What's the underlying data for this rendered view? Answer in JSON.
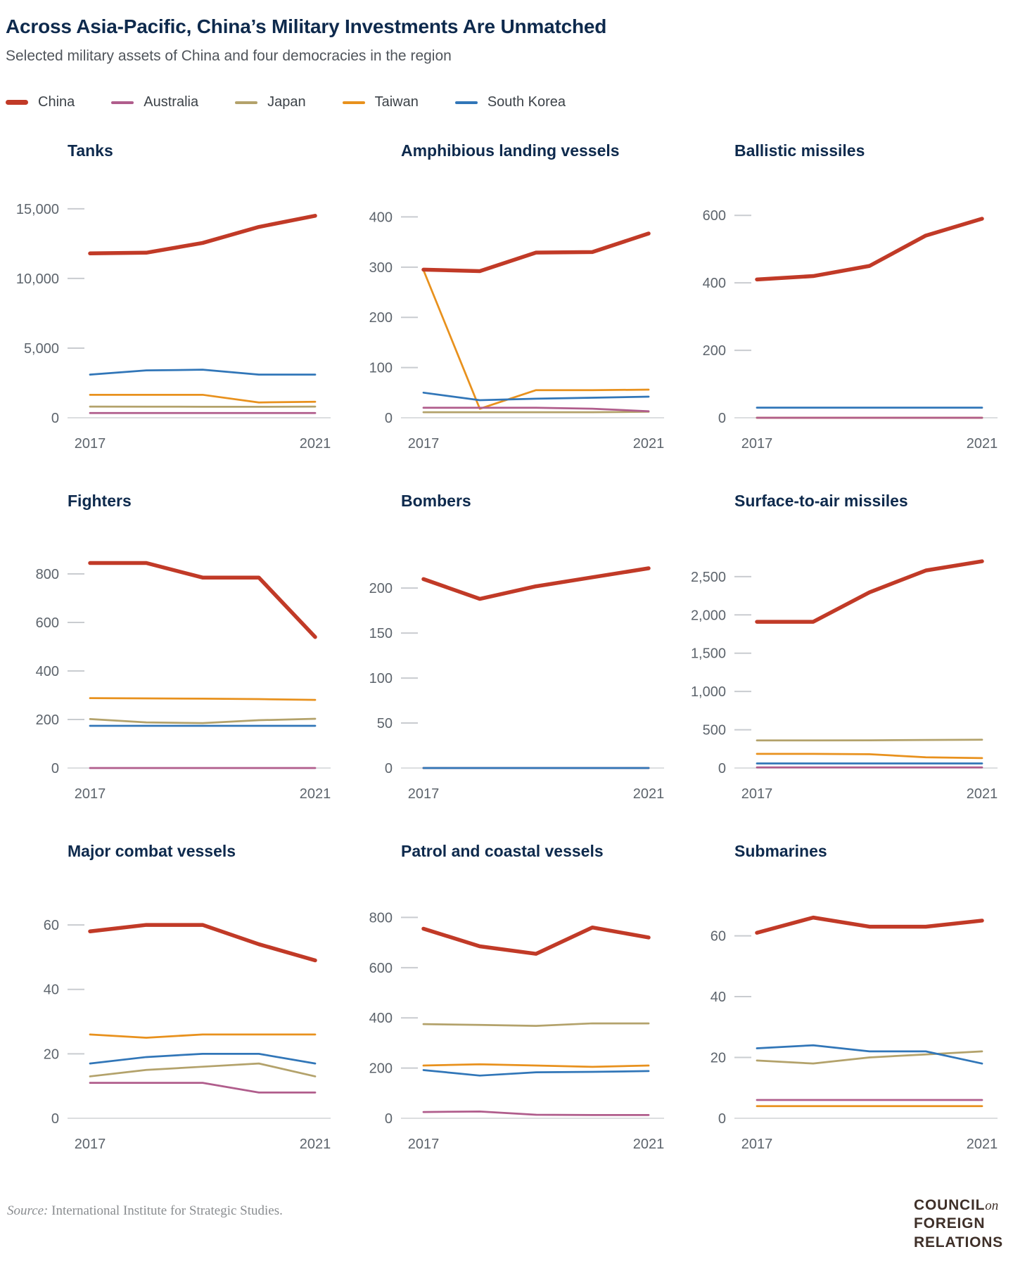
{
  "header": {
    "title": "Across Asia-Pacific, China’s Military Investments Are Unmatched",
    "subtitle": "Selected military assets of China and four democracies in the region"
  },
  "legend": {
    "items": [
      {
        "label": "China",
        "color": "#c13a27",
        "thick": true
      },
      {
        "label": "Australia",
        "color": "#b05d8c",
        "thick": false
      },
      {
        "label": "Japan",
        "color": "#b3a26b",
        "thick": false
      },
      {
        "label": "Taiwan",
        "color": "#e8911d",
        "thick": false
      },
      {
        "label": "South Korea",
        "color": "#3176b8",
        "thick": false
      }
    ]
  },
  "chart_data": [
    {
      "type": "line",
      "title": "Tanks",
      "x": [
        2017,
        2018,
        2019,
        2020,
        2021
      ],
      "xtick_labels": [
        "2017",
        "2021"
      ],
      "ylim": [
        0,
        15500
      ],
      "yticks": [
        {
          "v": 0,
          "label": "0"
        },
        {
          "v": 5000,
          "label": "5,000"
        },
        {
          "v": 10000,
          "label": "10,000"
        },
        {
          "v": 15000,
          "label": "15,000"
        }
      ],
      "series": [
        {
          "name": "Japan",
          "values": [
            800,
            795,
            790,
            790,
            800
          ]
        },
        {
          "name": "Taiwan",
          "values": [
            1650,
            1650,
            1650,
            1100,
            1150
          ]
        },
        {
          "name": "Australia",
          "values": [
            340,
            340,
            340,
            340,
            340
          ]
        },
        {
          "name": "South Korea",
          "values": [
            3100,
            3400,
            3450,
            3100,
            3100
          ]
        },
        {
          "name": "China",
          "values": [
            11800,
            11850,
            12550,
            13700,
            14500
          ]
        }
      ]
    },
    {
      "type": "line",
      "title": "Amphibious landing vessels",
      "x": [
        2017,
        2018,
        2019,
        2020,
        2021
      ],
      "xtick_labels": [
        "2017",
        "2021"
      ],
      "ylim": [
        0,
        430
      ],
      "yticks": [
        {
          "v": 0,
          "label": "0"
        },
        {
          "v": 100,
          "label": "100"
        },
        {
          "v": 200,
          "label": "200"
        },
        {
          "v": 300,
          "label": "300"
        },
        {
          "v": 400,
          "label": "400"
        }
      ],
      "series": [
        {
          "name": "Japan",
          "values": [
            11,
            11,
            11,
            11,
            12
          ]
        },
        {
          "name": "Taiwan",
          "values": [
            294,
            18,
            55,
            55,
            56
          ]
        },
        {
          "name": "Australia",
          "values": [
            20,
            20,
            20,
            18,
            13
          ]
        },
        {
          "name": "South Korea",
          "values": [
            50,
            35,
            38,
            40,
            42
          ]
        },
        {
          "name": "China",
          "values": [
            295,
            292,
            329,
            330,
            367
          ]
        }
      ]
    },
    {
      "type": "line",
      "title": "Ballistic missiles",
      "x": [
        2017,
        2018,
        2019,
        2020,
        2021
      ],
      "xtick_labels": [
        "2017",
        "2021"
      ],
      "ylim": [
        0,
        640
      ],
      "yticks": [
        {
          "v": 0,
          "label": "0"
        },
        {
          "v": 200,
          "label": "200"
        },
        {
          "v": 400,
          "label": "400"
        },
        {
          "v": 600,
          "label": "600"
        }
      ],
      "series": [
        {
          "name": "Japan",
          "values": [
            0,
            0,
            0,
            0,
            0
          ]
        },
        {
          "name": "Taiwan",
          "values": [
            0,
            0,
            0,
            0,
            0
          ]
        },
        {
          "name": "Australia",
          "values": [
            0,
            0,
            0,
            0,
            0
          ]
        },
        {
          "name": "South Korea",
          "values": [
            30,
            30,
            30,
            30,
            30
          ]
        },
        {
          "name": "China",
          "values": [
            410,
            420,
            450,
            540,
            590
          ]
        }
      ]
    },
    {
      "type": "line",
      "title": "Fighters",
      "x": [
        2017,
        2018,
        2019,
        2020,
        2021
      ],
      "xtick_labels": [
        "2017",
        "2021"
      ],
      "ylim": [
        0,
        890
      ],
      "yticks": [
        {
          "v": 0,
          "label": "0"
        },
        {
          "v": 200,
          "label": "200"
        },
        {
          "v": 400,
          "label": "400"
        },
        {
          "v": 600,
          "label": "600"
        },
        {
          "v": 800,
          "label": "800"
        }
      ],
      "series": [
        {
          "name": "Japan",
          "values": [
            202,
            188,
            185,
            197,
            203
          ]
        },
        {
          "name": "Taiwan",
          "values": [
            288,
            287,
            286,
            284,
            281
          ]
        },
        {
          "name": "Australia",
          "values": [
            0,
            0,
            0,
            0,
            0
          ]
        },
        {
          "name": "South Korea",
          "values": [
            174,
            174,
            174,
            174,
            174
          ]
        },
        {
          "name": "China",
          "values": [
            845,
            845,
            785,
            785,
            540
          ]
        }
      ]
    },
    {
      "type": "line",
      "title": "Bombers",
      "x": [
        2017,
        2018,
        2019,
        2020,
        2021
      ],
      "xtick_labels": [
        "2017",
        "2021"
      ],
      "ylim": [
        0,
        240
      ],
      "yticks": [
        {
          "v": 0,
          "label": "0"
        },
        {
          "v": 50,
          "label": "50"
        },
        {
          "v": 100,
          "label": "100"
        },
        {
          "v": 150,
          "label": "150"
        },
        {
          "v": 200,
          "label": "200"
        }
      ],
      "series": [
        {
          "name": "Japan",
          "values": [
            0,
            0,
            0,
            0,
            0
          ]
        },
        {
          "name": "Taiwan",
          "values": [
            0,
            0,
            0,
            0,
            0
          ]
        },
        {
          "name": "Australia",
          "values": [
            0,
            0,
            0,
            0,
            0
          ]
        },
        {
          "name": "South Korea",
          "values": [
            0,
            0,
            0,
            0,
            0
          ]
        },
        {
          "name": "China",
          "values": [
            210,
            188,
            202,
            212,
            222
          ]
        }
      ]
    },
    {
      "type": "line",
      "title": "Surface-to-air missiles",
      "x": [
        2017,
        2018,
        2019,
        2020,
        2021
      ],
      "xtick_labels": [
        "2017",
        "2021"
      ],
      "ylim": [
        0,
        2820
      ],
      "yticks": [
        {
          "v": 0,
          "label": "0"
        },
        {
          "v": 500,
          "label": "500"
        },
        {
          "v": 1000,
          "label": "1,000"
        },
        {
          "v": 1500,
          "label": "1,500"
        },
        {
          "v": 2000,
          "label": "2,000"
        },
        {
          "v": 2500,
          "label": "2,500"
        }
      ],
      "series": [
        {
          "name": "Japan",
          "values": [
            360,
            360,
            362,
            366,
            370
          ]
        },
        {
          "name": "Taiwan",
          "values": [
            185,
            185,
            180,
            140,
            130
          ]
        },
        {
          "name": "Australia",
          "values": [
            8,
            8,
            8,
            8,
            8
          ]
        },
        {
          "name": "South Korea",
          "values": [
            60,
            60,
            60,
            60,
            60
          ]
        },
        {
          "name": "China",
          "values": [
            1910,
            1910,
            2295,
            2580,
            2700
          ]
        }
      ]
    },
    {
      "type": "line",
      "title": "Major combat vessels",
      "x": [
        2017,
        2018,
        2019,
        2020,
        2021
      ],
      "xtick_labels": [
        "2017",
        "2021"
      ],
      "ylim": [
        0,
        67
      ],
      "yticks": [
        {
          "v": 0,
          "label": "0"
        },
        {
          "v": 20,
          "label": "20"
        },
        {
          "v": 40,
          "label": "40"
        },
        {
          "v": 60,
          "label": "60"
        }
      ],
      "series": [
        {
          "name": "Japan",
          "values": [
            13,
            15,
            16,
            17,
            13
          ]
        },
        {
          "name": "Taiwan",
          "values": [
            26,
            25,
            26,
            26,
            26
          ]
        },
        {
          "name": "Australia",
          "values": [
            11,
            11,
            11,
            8,
            8
          ]
        },
        {
          "name": "South Korea",
          "values": [
            17,
            19,
            20,
            20,
            17
          ]
        },
        {
          "name": "China",
          "values": [
            58,
            60,
            60,
            54,
            49
          ]
        }
      ]
    },
    {
      "type": "line",
      "title": "Patrol and coastal vessels",
      "x": [
        2017,
        2018,
        2019,
        2020,
        2021
      ],
      "xtick_labels": [
        "2017",
        "2021"
      ],
      "ylim": [
        0,
        860
      ],
      "yticks": [
        {
          "v": 0,
          "label": "0"
        },
        {
          "v": 200,
          "label": "200"
        },
        {
          "v": 400,
          "label": "400"
        },
        {
          "v": 600,
          "label": "600"
        },
        {
          "v": 800,
          "label": "800"
        }
      ],
      "series": [
        {
          "name": "Japan",
          "values": [
            375,
            372,
            368,
            378,
            378
          ]
        },
        {
          "name": "Taiwan",
          "values": [
            210,
            215,
            210,
            205,
            210
          ]
        },
        {
          "name": "Australia",
          "values": [
            25,
            27,
            14,
            13,
            13
          ]
        },
        {
          "name": "South Korea",
          "values": [
            192,
            170,
            183,
            185,
            188
          ]
        },
        {
          "name": "China",
          "values": [
            755,
            685,
            655,
            760,
            720
          ]
        }
      ]
    },
    {
      "type": "line",
      "title": "Submarines",
      "x": [
        2017,
        2018,
        2019,
        2020,
        2021
      ],
      "xtick_labels": [
        "2017",
        "2021"
      ],
      "ylim": [
        0,
        71
      ],
      "yticks": [
        {
          "v": 0,
          "label": "0"
        },
        {
          "v": 20,
          "label": "20"
        },
        {
          "v": 40,
          "label": "40"
        },
        {
          "v": 60,
          "label": "60"
        }
      ],
      "series": [
        {
          "name": "Japan",
          "values": [
            19,
            18,
            20,
            21,
            22
          ]
        },
        {
          "name": "Taiwan",
          "values": [
            4,
            4,
            4,
            4,
            4
          ]
        },
        {
          "name": "Australia",
          "values": [
            6,
            6,
            6,
            6,
            6
          ]
        },
        {
          "name": "South Korea",
          "values": [
            23,
            24,
            22,
            22,
            18
          ]
        },
        {
          "name": "China",
          "values": [
            61,
            66,
            63,
            63,
            65
          ]
        }
      ]
    }
  ],
  "footer": {
    "source_prefix": "Source:",
    "source_text": " International Institute for Strategic Studies.",
    "logo": {
      "line1": "COUNCIL",
      "on": "on",
      "line2": "FOREIGN",
      "line3": "RELATIONS"
    }
  },
  "style_tokens": {
    "title_navy": "#0e2a4d",
    "subtitle_gray": "#50555b",
    "tick_gray": "#5d646c",
    "tick_dash": "#c9ccd0",
    "baseline": "#dcdee0",
    "source_gray": "#8a8d90",
    "logo_brown": "#3f3029"
  }
}
